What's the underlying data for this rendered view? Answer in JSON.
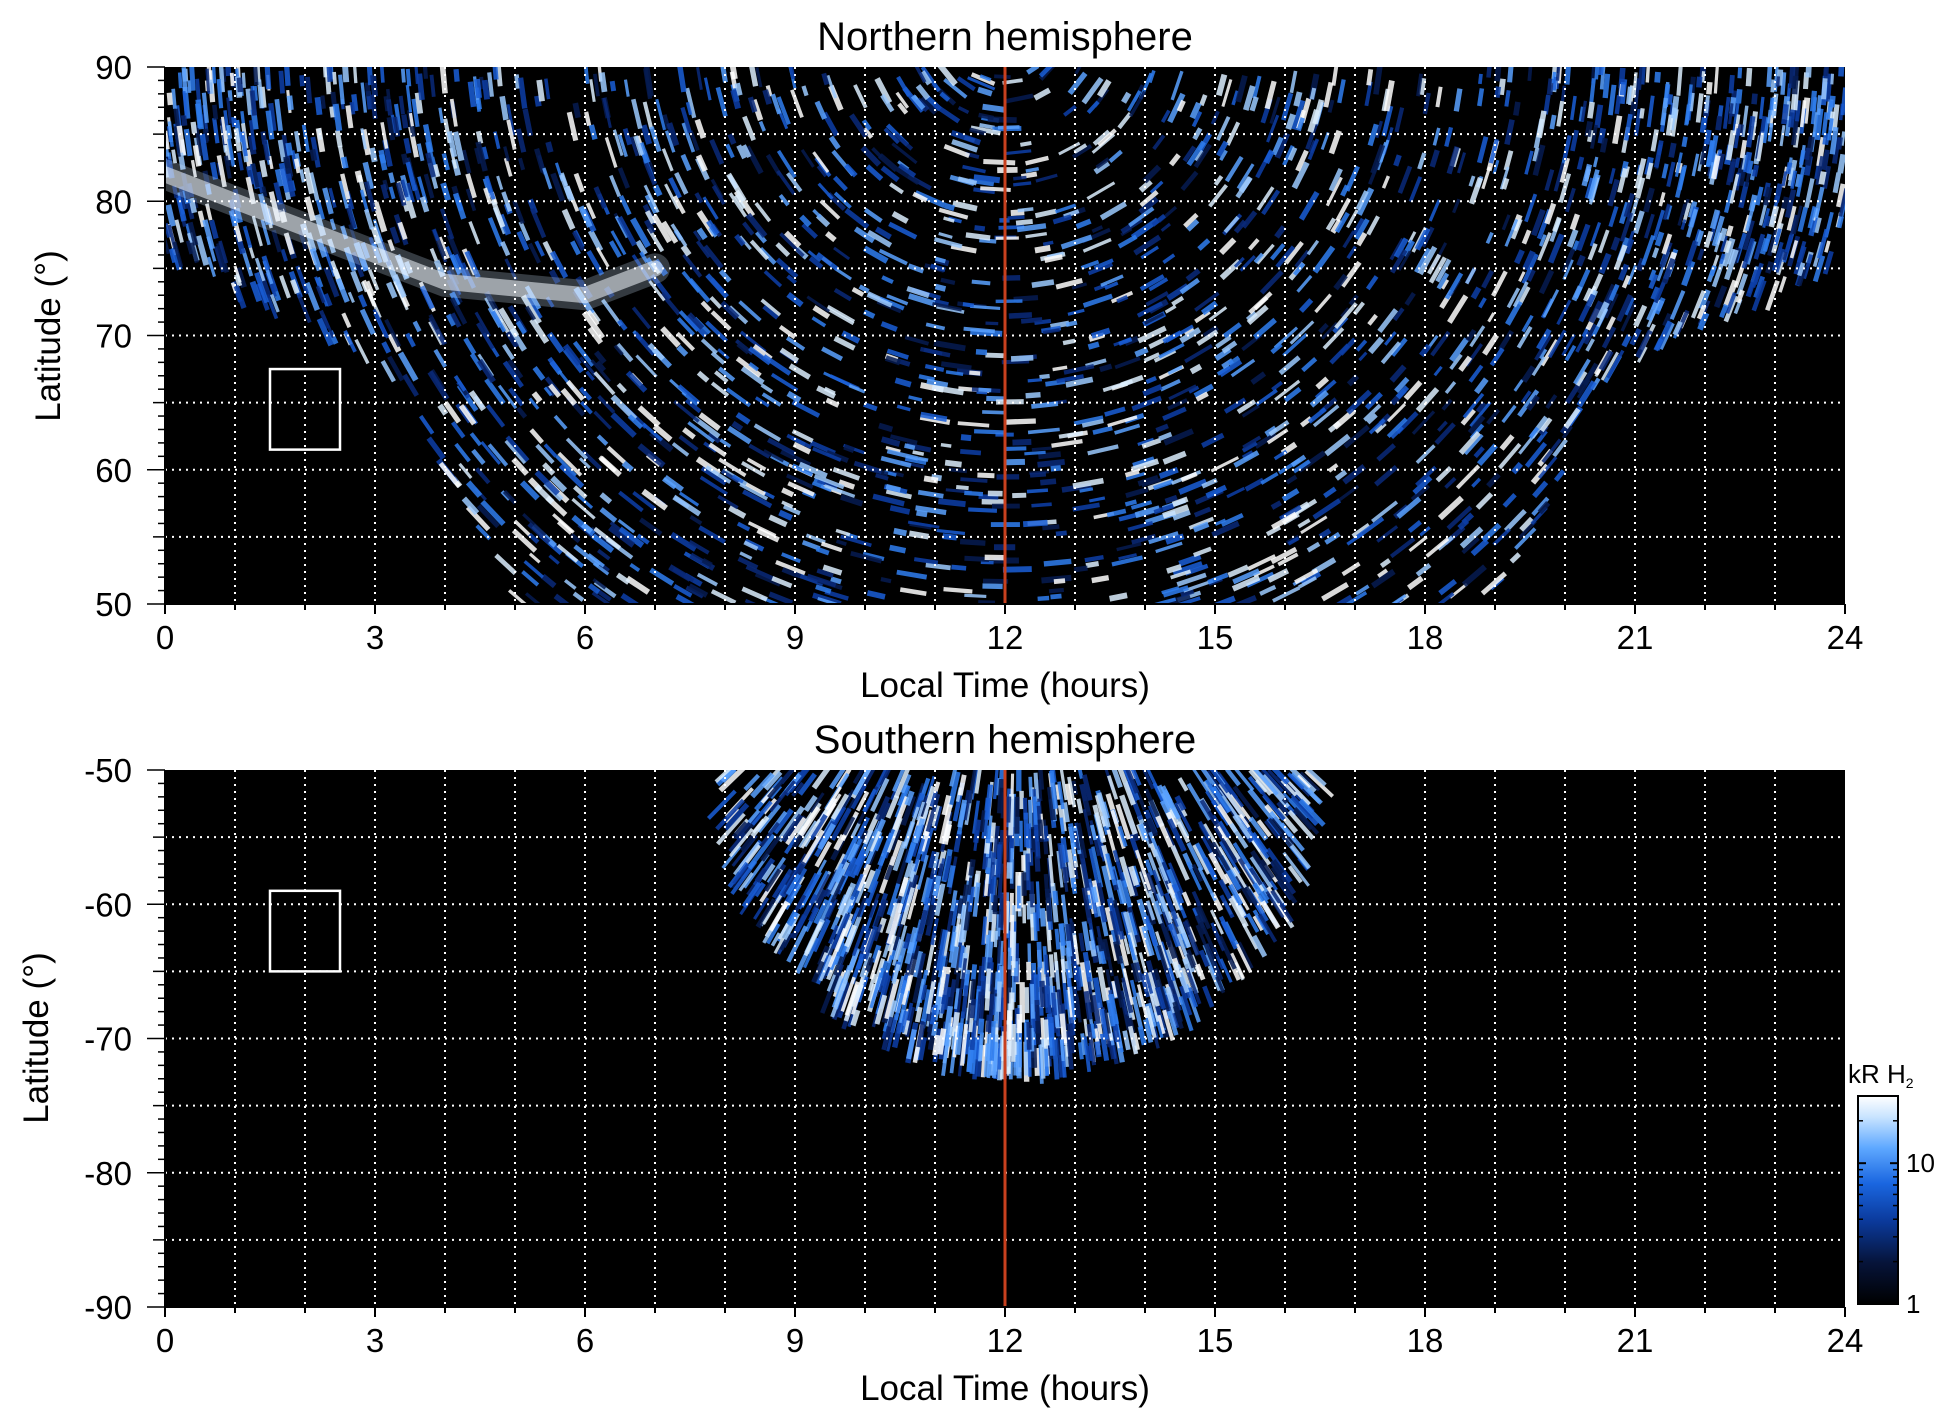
{
  "chart_data": [
    {
      "type": "heatmap",
      "title": "Northern hemisphere",
      "xlabel": "Local Time (hours)",
      "ylabel": "Latitude (°)",
      "xlim": [
        0,
        24
      ],
      "ylim": [
        50,
        90
      ],
      "x_ticks": [
        0,
        3,
        6,
        9,
        12,
        15,
        18,
        21,
        24
      ],
      "y_ticks": [
        50,
        60,
        70,
        80,
        90
      ],
      "x_tick_labels": [
        "0",
        "3",
        "6",
        "9",
        "12",
        "15",
        "18",
        "21",
        "24"
      ],
      "y_tick_labels": [
        "50",
        "60",
        "70",
        "80",
        "90"
      ],
      "grid": true,
      "grid_x_step": 1,
      "grid_y_step": 5,
      "noon_line_x": 12,
      "noon_line_color": "#c8401e",
      "box": {
        "x": [
          1.5,
          2.5
        ],
        "y": [
          61.5,
          67.5
        ]
      },
      "coverage": {
        "description_free": true,
        "bounds": [
          [
            0,
            76
          ],
          [
            1,
            73
          ],
          [
            2,
            71
          ],
          [
            3,
            68
          ],
          [
            3.5,
            66
          ],
          [
            4,
            60
          ],
          [
            4.5,
            55
          ],
          [
            5,
            50
          ],
          [
            19,
            50
          ],
          [
            19.5,
            55
          ],
          [
            20,
            60
          ],
          [
            20.5,
            66
          ],
          [
            21,
            68
          ],
          [
            22,
            71
          ],
          [
            23,
            73
          ],
          [
            24,
            76
          ]
        ]
      },
      "bright_band": {
        "points": [
          [
            0,
            82
          ],
          [
            2,
            78
          ],
          [
            4,
            74
          ],
          [
            6,
            73
          ],
          [
            7,
            75
          ]
        ]
      }
    },
    {
      "type": "heatmap",
      "title": "Southern hemisphere",
      "xlabel": "Local Time (hours)",
      "ylabel": "Latitude (°)",
      "xlim": [
        0,
        24
      ],
      "ylim": [
        -90,
        -50
      ],
      "x_ticks": [
        0,
        3,
        6,
        9,
        12,
        15,
        18,
        21,
        24
      ],
      "y_ticks": [
        -50,
        -60,
        -70,
        -80,
        -90
      ],
      "x_tick_labels": [
        "0",
        "3",
        "6",
        "9",
        "12",
        "15",
        "18",
        "21",
        "24"
      ],
      "y_tick_labels": [
        "-50",
        "-60",
        "-70",
        "-80",
        "-90"
      ],
      "grid": true,
      "grid_x_step": 1,
      "grid_y_step": 5,
      "noon_line_x": 12,
      "noon_line_color": "#c8401e",
      "box": {
        "x": [
          1.5,
          2.5
        ],
        "y": [
          -65,
          -59
        ]
      },
      "coverage": {
        "center_x": 12.2,
        "half_width": 4.3,
        "lat_top": -50,
        "lat_bottom": -72
      }
    }
  ],
  "colorbar": {
    "title": "kR H",
    "title_sub": "2",
    "scale": "log",
    "min": 1,
    "max": 30,
    "tick_labels": [
      "10",
      "1"
    ],
    "tick_values": [
      10,
      1
    ],
    "colors": [
      "#000000",
      "#06143a",
      "#0b3a9c",
      "#1a66e0",
      "#5ea8ff",
      "#c9e4ff",
      "#ffffff"
    ]
  }
}
